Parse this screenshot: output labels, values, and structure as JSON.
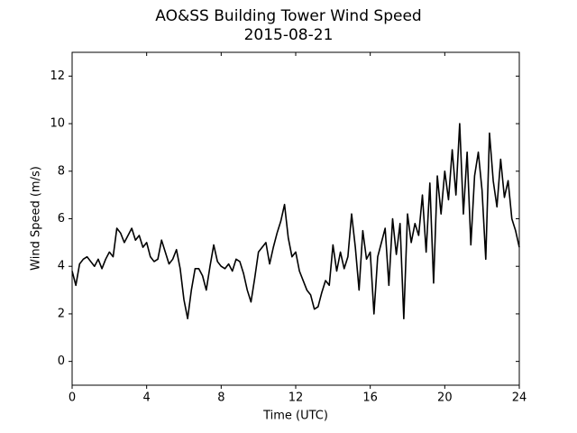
{
  "chart_data": {
    "type": "line",
    "title": "AO&SS Building Tower Wind Speed",
    "subtitle": "2015-08-21",
    "xlabel": "Time (UTC)",
    "ylabel": "Wind Speed (m/s)",
    "x": [
      0,
      0.2,
      0.4,
      0.6,
      0.8,
      1,
      1.2,
      1.4,
      1.6,
      1.8,
      2,
      2.2,
      2.4,
      2.6,
      2.8,
      3,
      3.2,
      3.4,
      3.6,
      3.8,
      4,
      4.2,
      4.4,
      4.6,
      4.8,
      5,
      5.2,
      5.4,
      5.6,
      5.8,
      6,
      6.2,
      6.4,
      6.6,
      6.8,
      7,
      7.2,
      7.4,
      7.6,
      7.8,
      8,
      8.2,
      8.4,
      8.6,
      8.8,
      9,
      9.2,
      9.4,
      9.6,
      9.8,
      10,
      10.2,
      10.4,
      10.6,
      10.8,
      11,
      11.2,
      11.4,
      11.6,
      11.8,
      12,
      12.2,
      12.4,
      12.6,
      12.8,
      13,
      13.2,
      13.4,
      13.6,
      13.8,
      14,
      14.2,
      14.4,
      14.6,
      14.8,
      15,
      15.2,
      15.4,
      15.6,
      15.8,
      16,
      16.2,
      16.4,
      16.6,
      16.8,
      17,
      17.2,
      17.4,
      17.6,
      17.8,
      18,
      18.2,
      18.4,
      18.6,
      18.8,
      19,
      19.2,
      19.4,
      19.6,
      19.8,
      20,
      20.2,
      20.4,
      20.6,
      20.8,
      21,
      21.2,
      21.4,
      21.6,
      21.8,
      22,
      22.2,
      22.4,
      22.6,
      22.8,
      23,
      23.2,
      23.4,
      23.6,
      23.8,
      24
    ],
    "series": [
      {
        "color": "#000000",
        "values": [
          3.8,
          3.2,
          4.1,
          4.3,
          4.4,
          4.2,
          4.0,
          4.3,
          3.9,
          4.3,
          4.6,
          4.4,
          5.6,
          5.4,
          5.0,
          5.3,
          5.6,
          5.1,
          5.3,
          4.8,
          5.0,
          4.4,
          4.2,
          4.3,
          5.1,
          4.6,
          4.1,
          4.3,
          4.7,
          3.9,
          2.6,
          1.8,
          3.0,
          3.9,
          3.9,
          3.6,
          3.0,
          4.0,
          4.9,
          4.2,
          4.0,
          3.9,
          4.1,
          3.8,
          4.3,
          4.2,
          3.7,
          3.0,
          2.5,
          3.5,
          4.6,
          4.8,
          5.0,
          4.1,
          4.8,
          5.4,
          5.9,
          6.6,
          5.2,
          4.4,
          4.6,
          3.8,
          3.4,
          3.0,
          2.8,
          2.2,
          2.3,
          2.9,
          3.4,
          3.2,
          4.9,
          3.8,
          4.6,
          3.9,
          4.4,
          6.2,
          4.8,
          3.0,
          5.5,
          4.3,
          4.6,
          2.0,
          4.4,
          5.0,
          5.6,
          3.2,
          6.0,
          4.5,
          5.8,
          1.8,
          6.2,
          5.0,
          5.8,
          5.3,
          7.0,
          4.6,
          7.5,
          3.3,
          7.8,
          6.2,
          8.0,
          6.8,
          8.9,
          7.0,
          10.0,
          6.2,
          8.8,
          4.9,
          7.8,
          8.8,
          7.2,
          4.3,
          9.6,
          7.6,
          6.5,
          8.5,
          6.9,
          7.6,
          6.0,
          5.5,
          4.8
        ]
      }
    ],
    "xlim": [
      0,
      24
    ],
    "xticks": [
      0,
      4,
      8,
      12,
      16,
      20,
      24
    ],
    "ylim": [
      -1,
      13
    ],
    "yticks": [
      0,
      2,
      4,
      6,
      8,
      10,
      12
    ]
  }
}
